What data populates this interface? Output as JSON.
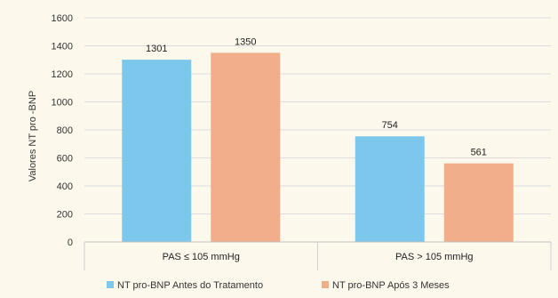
{
  "chart_data": {
    "type": "bar",
    "title": "",
    "ylabel": "Valores NT pro -BNP",
    "xlabel": "",
    "ylim": [
      0,
      1600
    ],
    "ytick_step": 200,
    "yticks": [
      "0",
      "200",
      "400",
      "600",
      "800",
      "1000",
      "1200",
      "1400",
      "1600"
    ],
    "categories": [
      "PAS ≤ 105 mmHg",
      "PAS > 105 mmHg"
    ],
    "series": [
      {
        "name": "NT pro-BNP Antes do Tratamento",
        "values": [
          1301,
          754
        ],
        "labels": [
          "1301",
          "754"
        ],
        "color": "#7cc8ec"
      },
      {
        "name": "NT pro-BNP Após 3 Meses",
        "values": [
          1350,
          561
        ],
        "labels": [
          "1350",
          "561"
        ],
        "color": "#f2ae8a"
      }
    ],
    "grid": true,
    "legend": "bottom"
  }
}
